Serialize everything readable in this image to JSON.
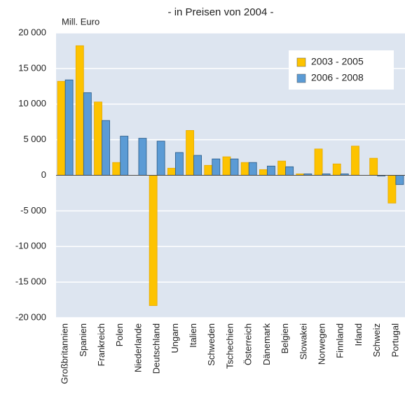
{
  "chart_data": {
    "type": "bar",
    "title": "- in Preisen von 2004 -",
    "y_label": "Mill. Euro",
    "categories": [
      "Großbritannien",
      "Spanien",
      "Frankreich",
      "Polen",
      "Niederlande",
      "Deutschland",
      "Ungarn",
      "Italien",
      "Schweden",
      "Tschechien",
      "Österreich",
      "Dänemark",
      "Belgien",
      "Slowakei",
      "Norwegen",
      "Finnland",
      "Irland",
      "Schweiz",
      "Portugal"
    ],
    "series": [
      {
        "name": "2003 - 2005",
        "color": "#fdc300",
        "values": [
          13200,
          18200,
          10300,
          1800,
          0,
          -18300,
          1000,
          6300,
          1400,
          2600,
          1800,
          800,
          2000,
          200,
          3700,
          1600,
          4100,
          2400,
          -3900
        ]
      },
      {
        "name": "2006 - 2008",
        "color": "#5b9bd5",
        "values": [
          13400,
          11600,
          7700,
          5500,
          5200,
          4800,
          3200,
          2800,
          2300,
          2300,
          1800,
          1300,
          1200,
          200,
          200,
          200,
          0,
          -100,
          -1300
        ]
      }
    ],
    "ylim": [
      -20000,
      20000
    ],
    "yticks": [
      {
        "value": -20000,
        "label": "-20 000"
      },
      {
        "value": -15000,
        "label": "-15 000"
      },
      {
        "value": -10000,
        "label": "-10 000"
      },
      {
        "value": -5000,
        "label": "-5 000"
      },
      0,
      {
        "value": 5000,
        "label": "5 000"
      },
      {
        "value": 10000,
        "label": "10 000"
      },
      {
        "value": 15000,
        "label": "15 000"
      },
      {
        "value": 20000,
        "label": "20 000"
      }
    ],
    "grid": true,
    "legend": "upper right"
  }
}
